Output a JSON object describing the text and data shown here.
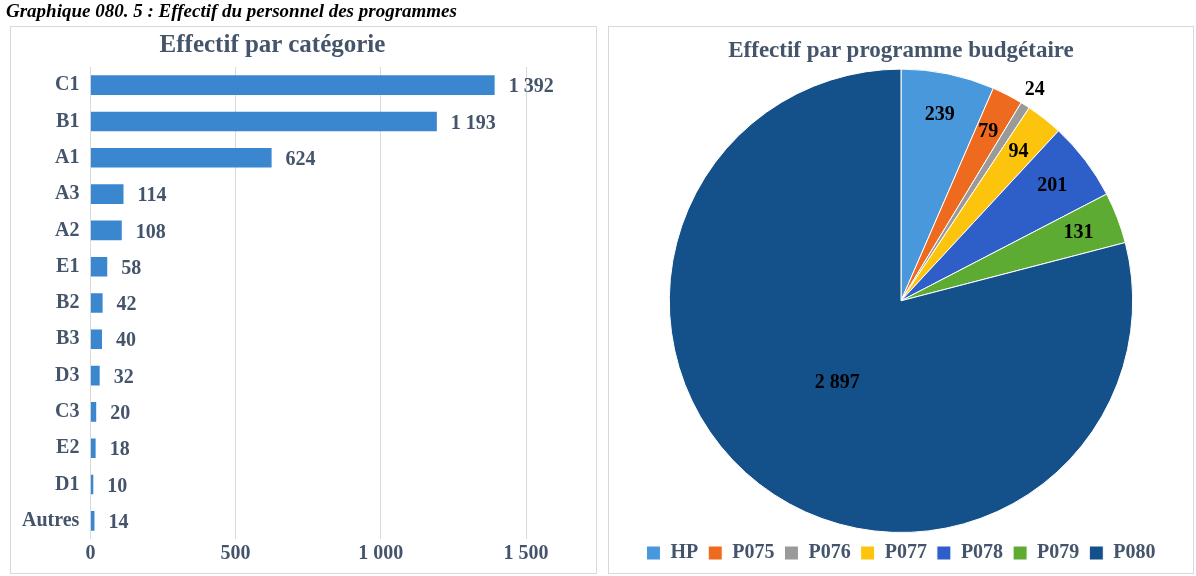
{
  "chart_data": [
    {
      "type": "bar",
      "orientation": "horizontal",
      "title": "Effectif par catégorie",
      "annotations": [
        "Graphique 080. 5 : Effectif du personnel des programmes"
      ],
      "categories": [
        "C1",
        "B1",
        "A1",
        "A3",
        "A2",
        "E1",
        "B2",
        "B3",
        "D3",
        "C3",
        "E2",
        "D1",
        "Autres"
      ],
      "values": [
        1392,
        1193,
        624,
        114,
        108,
        58,
        42,
        40,
        32,
        20,
        18,
        10,
        14
      ],
      "value_labels": [
        "1 392",
        "1 193",
        "624",
        "114",
        "108",
        "58",
        "42",
        "40",
        "32",
        "20",
        "18",
        "10",
        "14"
      ],
      "color": "#3a87d0",
      "xlim": [
        0,
        1500
      ],
      "xticks": [
        0,
        500,
        {
          "value": 1000,
          "label": "1 000"
        },
        {
          "value": 1500,
          "label": "1 500"
        }
      ],
      "grid": "x",
      "legend": false
    },
    {
      "type": "pie",
      "title": "Effectif par programme budgétaire",
      "categories": [
        "HP",
        "P075",
        "P076",
        "P077",
        "P078",
        "P079",
        "P080"
      ],
      "values": [
        239,
        79,
        24,
        94,
        201,
        131,
        2897
      ],
      "value_labels": [
        "239",
        "79",
        "24",
        "94",
        "201",
        "131",
        "2 897"
      ],
      "colors": [
        "#4a98dc",
        "#ee6a1e",
        "#9a9a9a",
        "#fcc40c",
        "#2e5fc9",
        "#5eab34",
        "#14508a"
      ],
      "legend": "bottom"
    }
  ]
}
